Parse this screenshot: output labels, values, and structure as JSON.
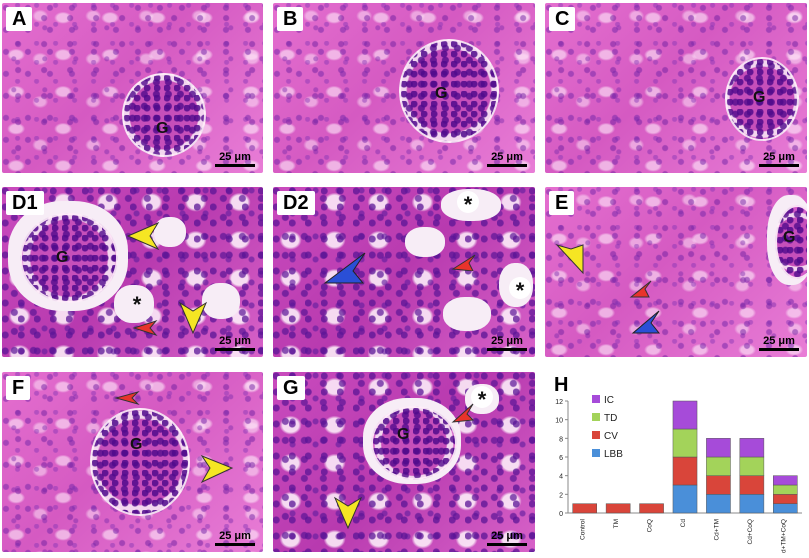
{
  "panels": [
    {
      "label": "A",
      "glomerulus_label": "G",
      "scale_bar": "25 μm"
    },
    {
      "label": "B",
      "glomerulus_label": "G",
      "scale_bar": "25 μm"
    },
    {
      "label": "C",
      "glomerulus_label": "G",
      "scale_bar": "25 μm"
    },
    {
      "label": "D1",
      "glomerulus_label": "G",
      "scale_bar": "25 μm",
      "marker": "*"
    },
    {
      "label": "D2",
      "scale_bar": "25 μm",
      "marker": "*"
    },
    {
      "label": "E",
      "glomerulus_label": "G",
      "scale_bar": "25 μm"
    },
    {
      "label": "F",
      "glomerulus_label": "G",
      "scale_bar": "25 μm"
    },
    {
      "label": "G",
      "glomerulus_label": "G",
      "scale_bar": "25 μm",
      "marker": "*"
    }
  ],
  "arrow_colors": {
    "yellow": "#f5e623",
    "red": "#e8332b",
    "blue": "#2a4fd6"
  },
  "chart_label": "H",
  "chart_data": {
    "type": "bar",
    "stacked": true,
    "categories": [
      "Control",
      "TM",
      "CoQ",
      "Cd",
      "Cd+TM",
      "Cd+CoQ",
      "Cd+TM+CoQ"
    ],
    "series": [
      {
        "name": "LBB",
        "color": "#4a8fd9",
        "values": [
          0,
          0,
          0,
          3,
          2,
          2,
          1
        ]
      },
      {
        "name": "CV",
        "color": "#d9453a",
        "values": [
          1,
          1,
          1,
          3,
          2,
          2,
          1
        ]
      },
      {
        "name": "TD",
        "color": "#a3d35a",
        "values": [
          0,
          0,
          0,
          3,
          2,
          2,
          1
        ]
      },
      {
        "name": "IC",
        "color": "#a64bd9",
        "values": [
          0,
          0,
          0,
          3,
          2,
          2,
          1
        ]
      }
    ],
    "ylim": [
      0,
      12
    ],
    "yticks": [
      0,
      2,
      4,
      6,
      8,
      10,
      12
    ],
    "legend_position": "top-left",
    "grid": false
  }
}
